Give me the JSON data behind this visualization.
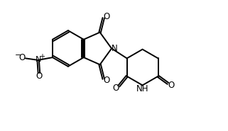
{
  "bg_color": "#ffffff",
  "line_color": "#000000",
  "lw": 1.4,
  "figsize": [
    3.21,
    1.85
  ],
  "dpi": 100,
  "xlim": [
    -3.5,
    7.0
  ],
  "ylim": [
    -3.8,
    3.5
  ]
}
